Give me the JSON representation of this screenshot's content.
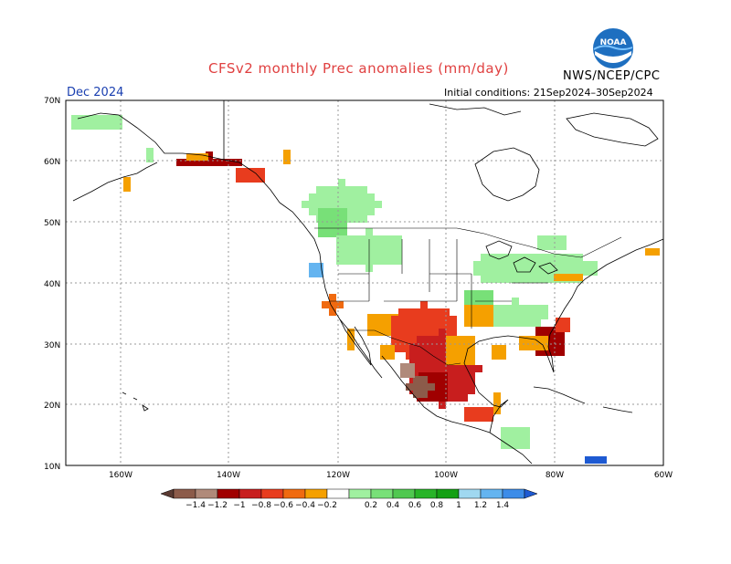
{
  "title": "CFSv2 monthly Prec anomalies (mm/day)",
  "org": "NWS/NCEP/CPC",
  "logo_label": "NOAA",
  "valid_month": "Dec 2024",
  "initial_conditions": "Initial conditions: 21Sep2024–30Sep2024",
  "lat_labels": [
    "70N",
    "60N",
    "50N",
    "40N",
    "30N",
    "20N",
    "10N"
  ],
  "lon_labels": [
    "160W",
    "140W",
    "120W",
    "100W",
    "80W",
    "60W"
  ],
  "colorbar": {
    "ticks": [
      "−1.4",
      "−1.2",
      "−1",
      "−0.8",
      "−0.6",
      "−0.4",
      "−0.2",
      "0.2",
      "0.4",
      "0.6",
      "0.8",
      "1",
      "1.2",
      "1.4"
    ],
    "colors": [
      "#5a3a32",
      "#8c5b4a",
      "#b08a7a",
      "#a00000",
      "#c81e1e",
      "#e83c1e",
      "#f06a10",
      "#f5a000",
      "#ffffff",
      "#a0f0a0",
      "#78e078",
      "#50c850",
      "#28b428",
      "#14a014",
      "#a0d8f0",
      "#64b4f0",
      "#3c8ce8",
      "#1e5ad2"
    ]
  }
}
